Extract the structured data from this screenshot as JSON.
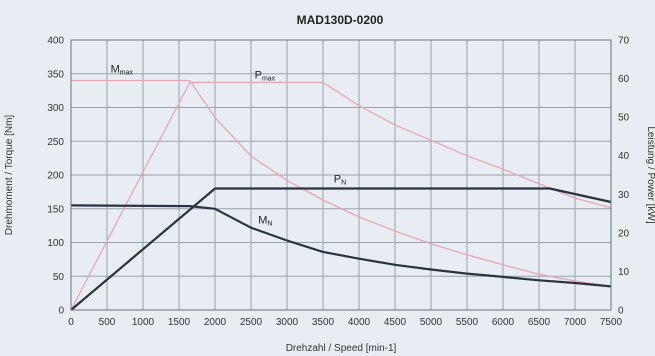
{
  "chart_data": {
    "type": "line",
    "title": "MAD130D-0200",
    "xlabel": "Drehzahl / Speed [min-1]",
    "ylabel_left": "Drehmoment / Torque [Nm]",
    "ylabel_right": "Leistung / Power [kW]",
    "xlim": [
      0,
      7500
    ],
    "ylim_left": [
      0,
      400
    ],
    "ylim_right": [
      0,
      70
    ],
    "x_ticks": [
      "0",
      "500",
      "1000",
      "1500",
      "2000",
      "2500",
      "3000",
      "3500",
      "4000",
      "4500",
      "5000",
      "5500",
      "6000",
      "6500",
      "7000",
      "7500"
    ],
    "y_ticks_left": [
      "0",
      "50",
      "100",
      "150",
      "200",
      "250",
      "300",
      "350",
      "400"
    ],
    "y_ticks_right": [
      "0",
      "10",
      "20",
      "30",
      "40",
      "50",
      "60",
      "70"
    ],
    "grid": true,
    "series": [
      {
        "name": "M",
        "sub": "max",
        "axis": "left",
        "color": "#e8a6b4",
        "width": 1.3,
        "label_at": [
          550,
          352
        ],
        "points": [
          [
            0,
            340
          ],
          [
            1650,
            340
          ],
          [
            2000,
            285
          ],
          [
            2500,
            228
          ],
          [
            3000,
            192
          ],
          [
            3500,
            163
          ],
          [
            4000,
            138
          ],
          [
            4500,
            117
          ],
          [
            5000,
            98
          ],
          [
            5500,
            82
          ],
          [
            6000,
            67
          ],
          [
            6500,
            53
          ],
          [
            7000,
            43
          ],
          [
            7500,
            35
          ]
        ]
      },
      {
        "name": "P",
        "sub": "max",
        "axis": "right",
        "color": "#e8a6b4",
        "width": 1.3,
        "label_at": [
          2550,
          60
        ],
        "points": [
          [
            0,
            0
          ],
          [
            1650,
            59
          ],
          [
            3500,
            59
          ],
          [
            4000,
            53
          ],
          [
            4500,
            48
          ],
          [
            5000,
            44
          ],
          [
            5500,
            40
          ],
          [
            6000,
            36.5
          ],
          [
            6600,
            32
          ],
          [
            7000,
            29
          ],
          [
            7500,
            26.5
          ]
        ]
      },
      {
        "name": "P",
        "sub": "N",
        "axis": "right",
        "color": "#2a3440",
        "width": 2.2,
        "label_at": [
          3650,
          33
        ],
        "points": [
          [
            0,
            0
          ],
          [
            2000,
            31.5
          ],
          [
            6650,
            31.5
          ],
          [
            7500,
            28
          ]
        ]
      },
      {
        "name": "M",
        "sub": "N",
        "axis": "left",
        "color": "#2a3440",
        "width": 2.2,
        "label_at": [
          2600,
          128
        ],
        "points": [
          [
            0,
            155
          ],
          [
            1650,
            154
          ],
          [
            2000,
            150
          ],
          [
            2500,
            122
          ],
          [
            3000,
            103
          ],
          [
            3500,
            86
          ],
          [
            4000,
            76
          ],
          [
            4500,
            67
          ],
          [
            5000,
            60
          ],
          [
            5500,
            54
          ],
          [
            6000,
            49
          ],
          [
            6500,
            44
          ],
          [
            7000,
            40
          ],
          [
            7500,
            35
          ]
        ]
      }
    ]
  }
}
